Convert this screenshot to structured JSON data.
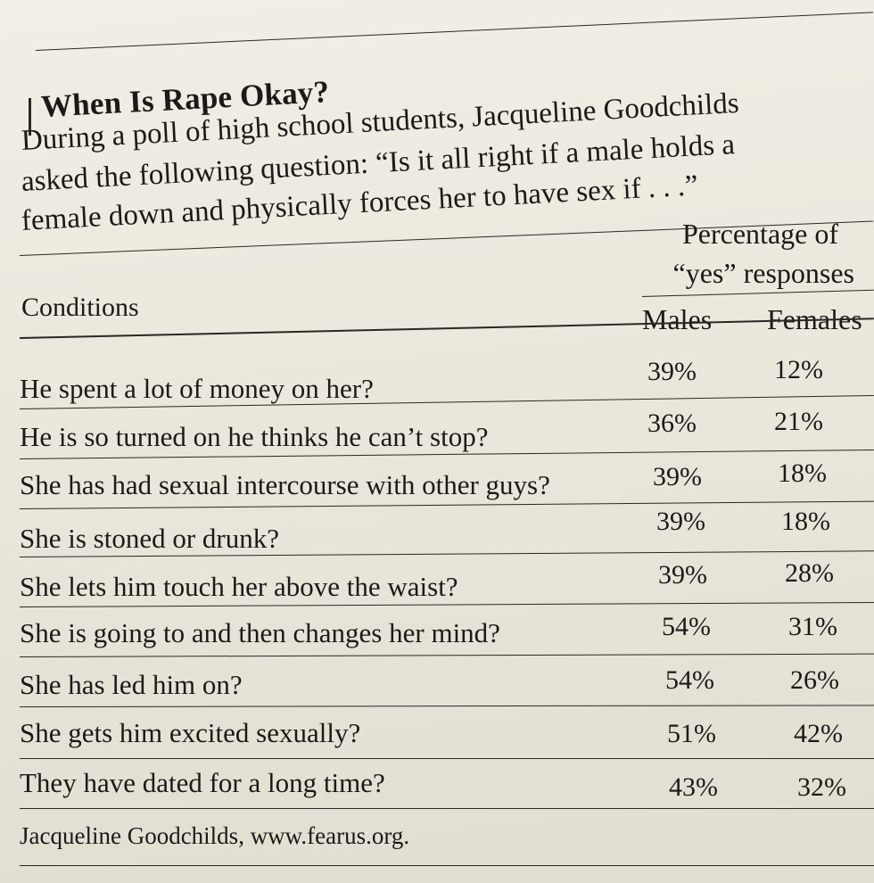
{
  "title": "When Is Rape Okay?",
  "intro": [
    "During a poll of high school students, Jacqueline Goodchilds",
    "asked the following question: “Is it all right if a male holds a",
    "female down and physically forces her to have sex if . . .”"
  ],
  "table": {
    "conditions_header": "Conditions",
    "percentage_header": [
      "Percentage of",
      "“yes” responses"
    ],
    "males_header": "Males",
    "females_header": "Females",
    "rows": [
      {
        "condition": "He spent a lot of money on her?",
        "males": "39%",
        "females": "12%"
      },
      {
        "condition": "He is so turned on he thinks he can’t stop?",
        "males": "36%",
        "females": "21%"
      },
      {
        "condition": "She has had sexual intercourse with other guys?",
        "males": "39%",
        "females": "18%"
      },
      {
        "condition": "She is stoned or drunk?",
        "males": "39%",
        "females": "18%"
      },
      {
        "condition": "She lets him touch her above the waist?",
        "males": "39%",
        "females": "28%"
      },
      {
        "condition": "She is going to and then changes her mind?",
        "males": "54%",
        "females": "31%"
      },
      {
        "condition": "She has led him on?",
        "males": "54%",
        "females": "26%"
      },
      {
        "condition": "She gets him excited sexually?",
        "males": "51%",
        "females": "42%"
      },
      {
        "condition": "They have dated for a long time?",
        "males": "43%",
        "females": "32%"
      }
    ]
  },
  "source": "Jacqueline Goodchilds, www.fearus.org."
}
